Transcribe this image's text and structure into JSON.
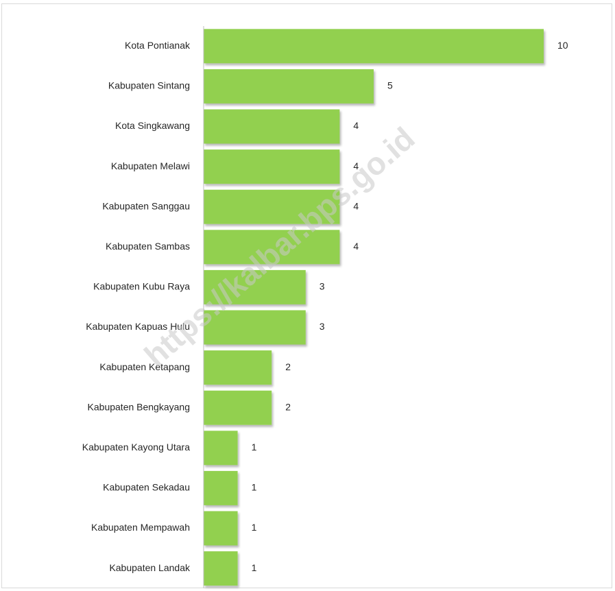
{
  "watermark": "https://kalbar.bps.go.id",
  "colors": {
    "bar": "#92d050",
    "axis": "#bfbfbf",
    "text": "#262626"
  },
  "chart_data": {
    "type": "bar",
    "orientation": "horizontal",
    "categories": [
      "Kota Pontianak",
      "Kabupaten Sintang",
      "Kota Singkawang",
      "Kabupaten Melawi",
      "Kabupaten Sanggau",
      "Kabupaten Sambas",
      "Kabupaten Kubu Raya",
      "Kabupaten Kapuas Hulu",
      "Kabupaten Ketapang",
      "Kabupaten Bengkayang",
      "Kabupaten Kayong Utara",
      "Kabupaten Sekadau",
      "Kabupaten Mempawah",
      "Kabupaten Landak"
    ],
    "values": [
      10,
      5,
      4,
      4,
      4,
      4,
      3,
      3,
      2,
      2,
      1,
      1,
      1,
      1
    ],
    "data_labels": [
      "10",
      "5",
      "4",
      "4",
      "4",
      "4",
      "3",
      "3",
      "2",
      "2",
      "1",
      "1",
      "1",
      "1"
    ],
    "xlim": [
      0,
      10
    ],
    "grid": false,
    "legend": "none"
  }
}
